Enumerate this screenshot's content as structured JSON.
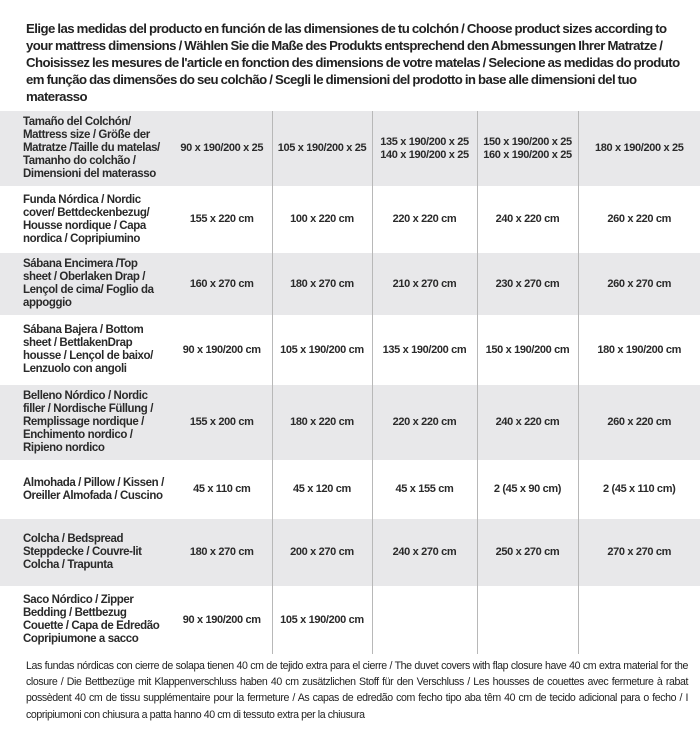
{
  "intro": "Elige las medidas del producto en función de las dimensiones de tu colchón / Choose product sizes according to your mattress dimensions / Wählen Sie die Maße des Produkts entsprechend den Abmessungen Ihrer Matratze / Choisissez les mesures de l'article en fonction des dimensions de votre matelas / Selecione as medidas do produto em função das dimensões do seu colchão / Scegli le dimensioni del prodotto in base alle dimensioni del tuo materasso",
  "table": {
    "header": {
      "label": "Tamaño del Colchón/ Mattress size / Größe der Matratze /Taille du matelas/ Tamanho do colchão / Dimensioni del materasso",
      "cols": [
        [
          "90 x 190/200 x 25"
        ],
        [
          "105 x 190/200 x 25"
        ],
        [
          "135 x 190/200 x 25",
          "140 x 190/200 x 25"
        ],
        [
          "150 x 190/200 x 25",
          "160 x 190/200 x 25"
        ],
        [
          "180 x 190/200 x 25"
        ]
      ]
    },
    "rows": [
      {
        "label": "Funda Nórdica /  Nordic cover/ Bettdeckenbezug/ Housse nordique  / Capa nordica / Copripiumino",
        "values": [
          "155 x 220 cm",
          "100 x 220 cm",
          "220 x 220 cm",
          "240 x 220 cm",
          "260 x 220 cm"
        ]
      },
      {
        "label": "Sábana Encimera /Top sheet / Oberlaken Drap / Lençol de cima/ Foglio da appoggio",
        "values": [
          "160 x 270 cm",
          "180 x 270 cm",
          "210 x 270 cm",
          "230 x 270 cm",
          "260 x 270 cm"
        ]
      },
      {
        "label": "Sábana Bajera / Bottom sheet / BettlakenDrap housse / Lençol de baixo/ Lenzuolo con angoli",
        "values": [
          "90 x 190/200 cm",
          "105 x 190/200 cm",
          "135 x 190/200 cm",
          "150 x 190/200 cm",
          "180 x 190/200 cm"
        ]
      },
      {
        "label": "Belleno Nórdico / Nordic filler / Nordische Füllung / Remplissage nordique / Enchimento nordico / Ripieno nordico",
        "values": [
          "155 x 200 cm",
          "180 x 220 cm",
          "220 x 220 cm",
          "240 x 220 cm",
          "260 x 220 cm"
        ]
      },
      {
        "label": "Almohada  / Pillow / Kissen / Oreiller Almofada / Cuscino",
        "values": [
          "45 x 110 cm",
          "45 x 120 cm",
          "45 x 155 cm",
          "2 (45 x 90 cm)",
          "2 (45 x 110 cm)"
        ]
      },
      {
        "label": "Colcha / Bedspread Steppdecke / Couvre-lit Colcha / Trapunta",
        "values": [
          "180 x 270 cm",
          "200 x 270 cm",
          "240 x 270 cm",
          "250 x 270 cm",
          "270 x 270 cm"
        ]
      },
      {
        "label": "Saco Nórdico / Zipper Bedding / Bettbezug Couette  / Capa de Edredão Copripiumone a sacco",
        "values": [
          "90 x 190/200 cm",
          "105 x 190/200 cm",
          "",
          "",
          ""
        ]
      }
    ]
  },
  "note": "Las fundas nórdicas con cierre de solapa tienen 40 cm de tejido extra para el cierre  / The duvet covers with flap closure have 40 cm extra material for the closure / Die Bettbezüge mit Klappenverschluss haben 40 cm zusätzlichen Stoff für den Verschluss / Les housses de couettes avec fermeture à rabat possèdent 40 cm de tissu supplémentaire pour la fermeture / As capas de edredão com fecho tipo aba têm 40 cm de tecido adicional para o fecho / I copripiumoni con chiusura a patta hanno 40 cm di tessuto extra per la chiusura"
}
